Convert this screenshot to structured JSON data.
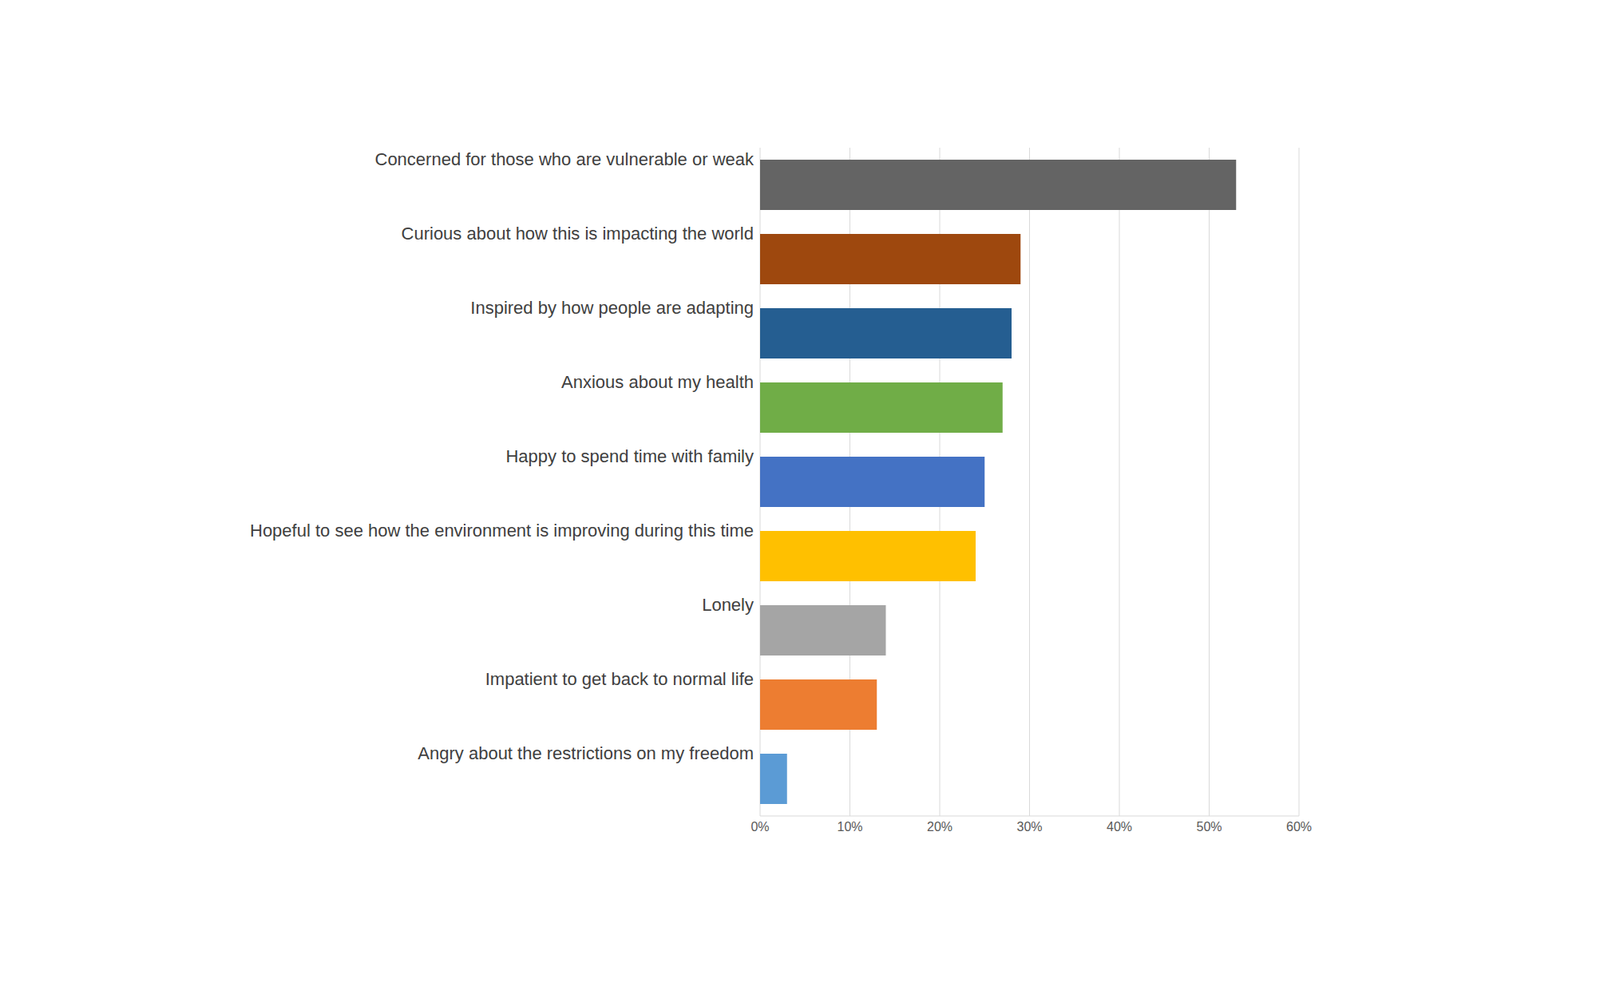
{
  "chart_data": {
    "type": "bar",
    "orientation": "horizontal",
    "categories": [
      "Concerned for those who are vulnerable or weak",
      "Curious about how this is impacting the world",
      "Inspired by how people are adapting",
      "Anxious about my health",
      "Happy to spend time with family",
      "Hopeful to see how the environment is improving during this time",
      "Lonely",
      "Impatient to get back to normal life",
      "Angry about the restrictions on my freedom"
    ],
    "values": [
      53,
      29,
      28,
      27,
      25,
      24,
      14,
      13,
      3
    ],
    "colors": [
      "#646464",
      "#9e480e",
      "#255e91",
      "#70ad47",
      "#4472c4",
      "#ffc000",
      "#a5a5a5",
      "#ed7d31",
      "#5b9bd5"
    ],
    "xlim": [
      0,
      60
    ],
    "xticks": [
      {
        "value": 0,
        "label": "0%"
      },
      {
        "value": 10,
        "label": "10%"
      },
      {
        "value": 20,
        "label": "20%"
      },
      {
        "value": 30,
        "label": "30%"
      },
      {
        "value": 40,
        "label": "40%"
      },
      {
        "value": 50,
        "label": "50%"
      },
      {
        "value": 60,
        "label": "60%"
      }
    ],
    "grid": true
  }
}
